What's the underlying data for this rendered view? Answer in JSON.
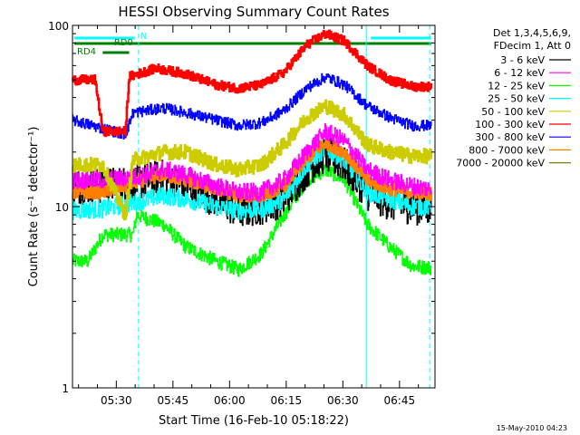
{
  "chart_data": {
    "type": "line",
    "title": "HESSI Observing Summary Count Rates",
    "xlabel": "Start Time (16-Feb-10 05:18:22)",
    "ylabel": "Count Rate (s⁻¹ detector⁻¹)",
    "yscale": "log",
    "ylim": [
      1,
      100
    ],
    "xlim_minutes": [
      0,
      96
    ],
    "y_ticks": [
      "1",
      "10",
      "100"
    ],
    "x_ticks": [
      {
        "label": "05:30",
        "value": 11.6
      },
      {
        "label": "05:45",
        "value": 26.6
      },
      {
        "label": "06:00",
        "value": 41.6
      },
      {
        "label": "06:15",
        "value": 56.6
      },
      {
        "label": "06:30",
        "value": 71.6
      },
      {
        "label": "06:45",
        "value": 86.6
      }
    ],
    "legend_header": [
      "Det 1,3,4,5,6,9,",
      "FDecim 1, Att 0"
    ],
    "timestamp": "15-May-2010 04:23",
    "flags": [
      {
        "name": "N",
        "color": "#00ffff",
        "segments": [
          [
            0.5,
            16.5
          ],
          [
            79,
            95
          ]
        ]
      },
      {
        "name": "RD0",
        "color": "#008000",
        "segments": [
          [
            0.5,
            95
          ]
        ]
      },
      {
        "name": "RD4",
        "color": "#008000",
        "segments": [
          [
            8,
            15
          ]
        ]
      }
    ],
    "markers": [
      {
        "x": 0.0,
        "style": "solid",
        "color": "#00ffff"
      },
      {
        "x": 17.5,
        "style": "dashed",
        "color": "#00ffff"
      },
      {
        "x": 77.8,
        "style": "solid",
        "color": "#00ffff"
      },
      {
        "x": 94.6,
        "style": "dashed",
        "color": "#00ffff"
      }
    ],
    "series": [
      {
        "name": "3 - 6 keV",
        "color": "#000000",
        "noise": 0.1,
        "points": [
          [
            0,
            13
          ],
          [
            8,
            13
          ],
          [
            16,
            13.5
          ],
          [
            24,
            14.5
          ],
          [
            30,
            13
          ],
          [
            38,
            11
          ],
          [
            44,
            9.5
          ],
          [
            50,
            10
          ],
          [
            56,
            11
          ],
          [
            62,
            16
          ],
          [
            67,
            19.5
          ],
          [
            72,
            17
          ],
          [
            78,
            12
          ],
          [
            84,
            10.5
          ],
          [
            90,
            10
          ],
          [
            95,
            9.8
          ]
        ]
      },
      {
        "name": "6 - 12 keV",
        "color": "#ff00ff",
        "noise": 0.05,
        "points": [
          [
            0,
            14
          ],
          [
            8,
            14
          ],
          [
            16,
            14.5
          ],
          [
            24,
            16
          ],
          [
            30,
            15
          ],
          [
            38,
            13
          ],
          [
            44,
            12
          ],
          [
            50,
            12
          ],
          [
            56,
            14
          ],
          [
            62,
            20
          ],
          [
            67,
            26
          ],
          [
            72,
            23
          ],
          [
            78,
            16
          ],
          [
            84,
            14
          ],
          [
            90,
            13
          ],
          [
            95,
            12.5
          ]
        ]
      },
      {
        "name": "12 - 25 keV",
        "color": "#00ff00",
        "noise": 0.04,
        "points": [
          [
            0,
            5
          ],
          [
            4,
            5
          ],
          [
            8,
            7
          ],
          [
            16,
            7
          ],
          [
            17,
            9
          ],
          [
            24,
            8
          ],
          [
            30,
            6
          ],
          [
            38,
            5
          ],
          [
            44,
            4.5
          ],
          [
            50,
            5.5
          ],
          [
            56,
            9
          ],
          [
            62,
            14
          ],
          [
            67,
            16
          ],
          [
            72,
            14
          ],
          [
            78,
            8
          ],
          [
            84,
            6
          ],
          [
            90,
            4.7
          ],
          [
            95,
            4.6
          ]
        ]
      },
      {
        "name": "25 - 50 keV",
        "color": "#00ffff",
        "noise": 0.05,
        "points": [
          [
            0,
            9.5
          ],
          [
            8,
            9.7
          ],
          [
            16,
            10.5
          ],
          [
            24,
            11.5
          ],
          [
            30,
            11
          ],
          [
            38,
            10
          ],
          [
            44,
            9.5
          ],
          [
            50,
            9.7
          ],
          [
            56,
            11
          ],
          [
            62,
            17
          ],
          [
            67,
            21
          ],
          [
            72,
            18
          ],
          [
            78,
            12
          ],
          [
            84,
            11
          ],
          [
            90,
            10
          ],
          [
            95,
            10
          ]
        ]
      },
      {
        "name": "50 - 100 keV",
        "color": "#cccc00",
        "noise": 0.04,
        "points": [
          [
            0,
            17
          ],
          [
            8,
            17
          ],
          [
            12,
            11
          ],
          [
            14,
            9
          ],
          [
            16,
            18
          ],
          [
            24,
            20
          ],
          [
            30,
            20
          ],
          [
            38,
            17
          ],
          [
            44,
            16
          ],
          [
            50,
            17
          ],
          [
            56,
            22
          ],
          [
            62,
            31
          ],
          [
            67,
            36
          ],
          [
            72,
            32
          ],
          [
            78,
            22
          ],
          [
            84,
            20
          ],
          [
            90,
            19
          ],
          [
            95,
            19
          ]
        ]
      },
      {
        "name": "100 - 300 keV",
        "color": "#ff0000",
        "noise": 0.025,
        "points": [
          [
            0,
            50
          ],
          [
            6,
            50
          ],
          [
            8,
            26
          ],
          [
            14,
            26
          ],
          [
            15,
            52
          ],
          [
            22,
            58
          ],
          [
            30,
            54
          ],
          [
            38,
            47
          ],
          [
            44,
            45
          ],
          [
            50,
            47
          ],
          [
            56,
            55
          ],
          [
            62,
            78
          ],
          [
            67,
            90
          ],
          [
            72,
            82
          ],
          [
            78,
            60
          ],
          [
            84,
            50
          ],
          [
            90,
            46
          ],
          [
            95,
            46
          ]
        ]
      },
      {
        "name": "300 - 800 keV",
        "color": "#0000ff",
        "noise": 0.03,
        "points": [
          [
            0,
            30
          ],
          [
            8,
            27
          ],
          [
            14,
            25
          ],
          [
            16,
            33
          ],
          [
            24,
            35
          ],
          [
            30,
            33
          ],
          [
            38,
            30
          ],
          [
            44,
            28
          ],
          [
            50,
            29
          ],
          [
            56,
            34
          ],
          [
            62,
            45
          ],
          [
            67,
            52
          ],
          [
            72,
            47
          ],
          [
            78,
            36
          ],
          [
            84,
            31
          ],
          [
            90,
            28
          ],
          [
            95,
            28
          ]
        ]
      },
      {
        "name": "800 - 7000 keV",
        "color": "#ff8000",
        "noise": 0.035,
        "points": [
          [
            0,
            12
          ],
          [
            8,
            12
          ],
          [
            16,
            13.5
          ],
          [
            24,
            15
          ],
          [
            30,
            14
          ],
          [
            38,
            12.5
          ],
          [
            44,
            11.5
          ],
          [
            50,
            11.5
          ],
          [
            56,
            13
          ],
          [
            62,
            18.5
          ],
          [
            67,
            22.5
          ],
          [
            72,
            20
          ],
          [
            78,
            14
          ],
          [
            84,
            12.5
          ],
          [
            90,
            12
          ],
          [
            95,
            11.8
          ]
        ]
      },
      {
        "name": "7000 - 20000 keV",
        "color": "#808000",
        "noise": 0.0,
        "points": []
      }
    ]
  }
}
